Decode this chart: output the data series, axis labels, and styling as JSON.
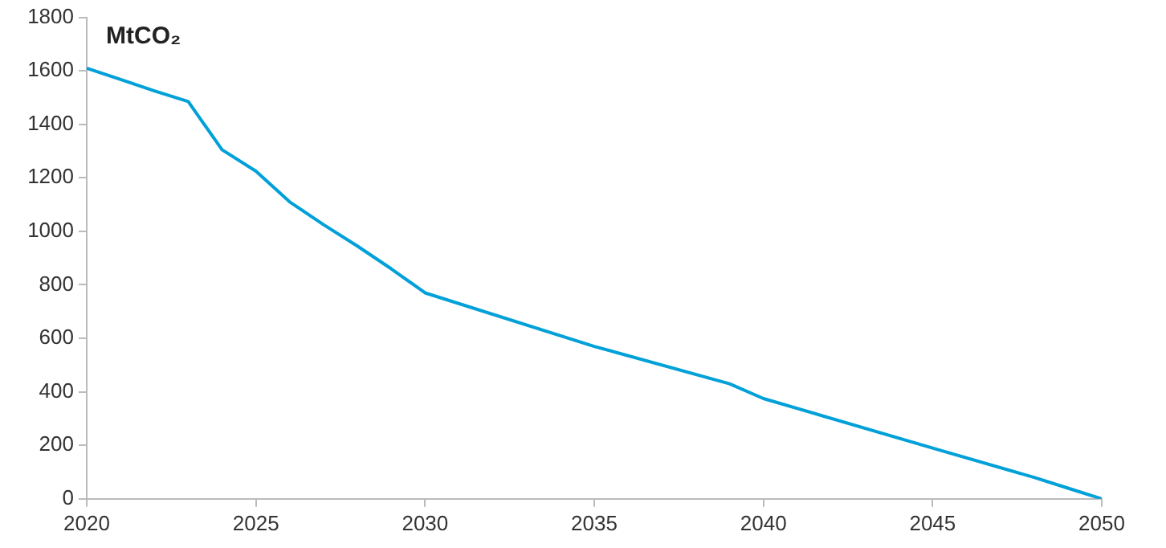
{
  "chart_data": {
    "type": "line",
    "ylabel": "MtCO₂",
    "x": [
      2020,
      2021,
      2022,
      2023,
      2024,
      2025,
      2026,
      2027,
      2028,
      2029,
      2030,
      2035,
      2039,
      2040,
      2045,
      2048,
      2049,
      2050
    ],
    "series": [
      {
        "color": "#00a0d8",
        "values": [
          1610,
          1568,
          1525,
          1485,
          1305,
          1225,
          1110,
          1025,
          945,
          860,
          770,
          570,
          430,
          375,
          190,
          80,
          40,
          0
        ]
      }
    ],
    "xlim": [
      2020,
      2050
    ],
    "xticks": [
      2020,
      2025,
      2030,
      2035,
      2040,
      2045,
      2050
    ],
    "ylim": [
      0,
      1800
    ],
    "yticks": [
      0,
      200,
      400,
      600,
      800,
      1000,
      1200,
      1400,
      1600,
      1800
    ],
    "grid": false,
    "legend": false,
    "marker": "none",
    "line_style": "solid"
  }
}
